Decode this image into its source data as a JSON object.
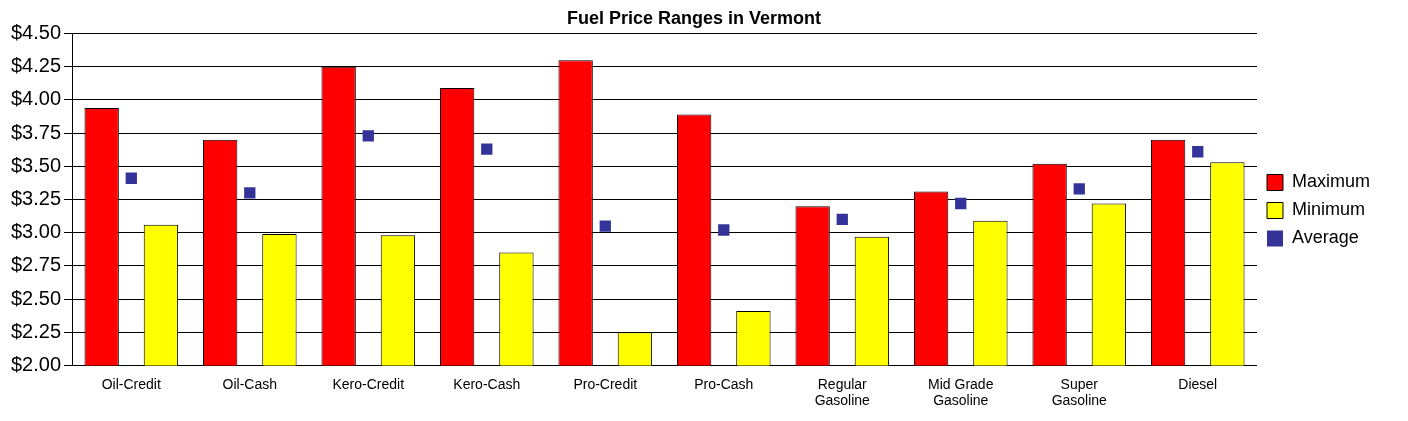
{
  "chart_data": {
    "type": "bar",
    "title": "Fuel Price Ranges in Vermont",
    "categories": [
      "Oil-Credit",
      "Oil-Cash",
      "Kero-Credit",
      "Kero-Cash",
      "Pro-Credit",
      "Pro-Cash",
      "Regular Gasoline",
      "Mid Grade Gasoline",
      "Super Gasoline",
      "Diesel"
    ],
    "series": [
      {
        "name": "Maximum",
        "color": "#ff0000",
        "values": [
          3.94,
          3.7,
          4.25,
          4.09,
          4.3,
          3.89,
          3.2,
          3.31,
          3.52,
          3.7
        ]
      },
      {
        "name": "Minimum",
        "color": "#ffff00",
        "values": [
          3.06,
          2.99,
          2.98,
          2.85,
          2.25,
          2.41,
          2.97,
          3.09,
          3.22,
          3.53
        ]
      },
      {
        "name": "Average",
        "type": "scatter",
        "marker": "square",
        "color": "#333399",
        "values": [
          3.41,
          3.3,
          3.73,
          3.63,
          3.05,
          3.02,
          3.1,
          3.22,
          3.33,
          3.61
        ]
      }
    ],
    "ylim": [
      2,
      4.5
    ],
    "yticks": [
      {
        "value": 2,
        "label": "$2.00"
      },
      {
        "value": 2.25,
        "label": "$2.25"
      },
      {
        "value": 2.5,
        "label": "$2.50"
      },
      {
        "value": 2.75,
        "label": "$2.75"
      },
      {
        "value": 3,
        "label": "$3.00"
      },
      {
        "value": 3.25,
        "label": "$3.25"
      },
      {
        "value": 3.5,
        "label": "$3.50"
      },
      {
        "value": 3.75,
        "label": "$3.75"
      },
      {
        "value": 4,
        "label": "$4.00"
      },
      {
        "value": 4.25,
        "label": "$4.25"
      },
      {
        "value": 4.5,
        "label": "$4.50"
      }
    ],
    "grid": "y",
    "legend": "right"
  }
}
